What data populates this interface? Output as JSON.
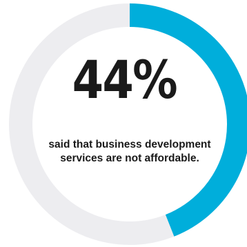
{
  "chart_data": {
    "type": "pie",
    "style": "donut",
    "value_percent": 44,
    "label": "44%",
    "caption": "said that business development services are not affordable.",
    "colors": {
      "value": "#00aedb",
      "remainder": "#ededf0",
      "text": "#1a1a1a"
    }
  }
}
